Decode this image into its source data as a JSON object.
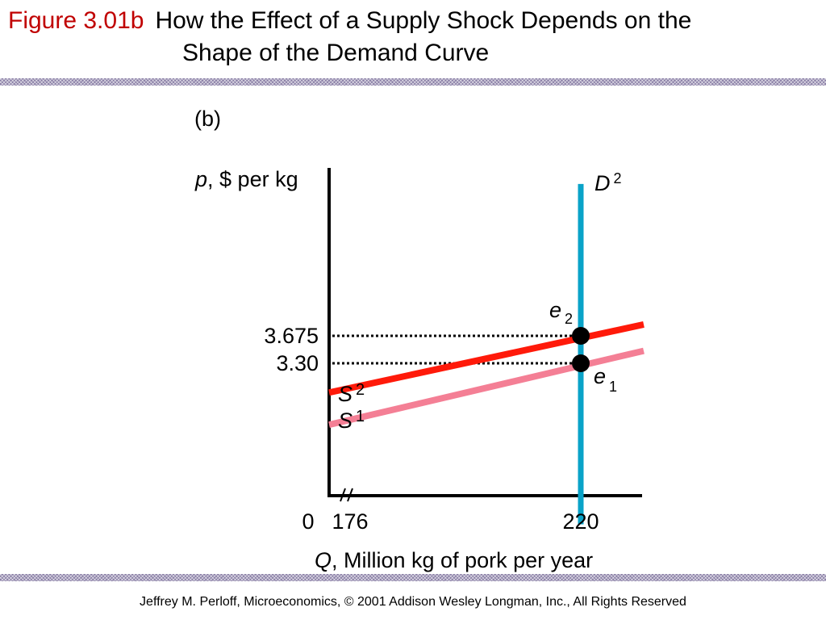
{
  "slide": {
    "figure_label": "Figure 3.01b",
    "title_line1": "How the Effect of a Supply Shock Depends on the",
    "title_line2": "Shape of the Demand Curve",
    "footer": "Jeffrey M. Perloff, Microeconomics,  © 2001 Addison Wesley Longman, Inc.,  All Rights Reserved"
  },
  "colors": {
    "figure_label": "#c00000",
    "hatch": "#8a7fa6",
    "demand": "#0aa3c8",
    "supply_s2": "#ff1a0a",
    "supply_s1": "#f47f95",
    "axis": "#000000"
  },
  "chart_data": {
    "type": "line",
    "panel_label": "(b)",
    "ylabel": {
      "var": "p",
      "rest": ", $ per kg"
    },
    "xlabel": {
      "var": "Q",
      "rest": ", Million kg of pork per year"
    },
    "x_ticks": [
      {
        "value": 0,
        "label": "0"
      },
      {
        "value": 176,
        "label": "176"
      },
      {
        "value": 220,
        "label": "220"
      }
    ],
    "y_ticks": [
      {
        "value": 3.675,
        "label": "3.675"
      },
      {
        "value": 3.3,
        "label": "3.30"
      }
    ],
    "x_axis_break": true,
    "series": [
      {
        "name": "D",
        "sub": "2",
        "points": [
          [
            220,
            1.1
          ],
          [
            220,
            5.75
          ]
        ]
      },
      {
        "name": "S",
        "sub": "2",
        "points": [
          [
            172,
            2.9
          ],
          [
            232,
            3.83
          ]
        ]
      },
      {
        "name": "S",
        "sub": "1",
        "points": [
          [
            172,
            2.46
          ],
          [
            232,
            3.47
          ]
        ]
      }
    ],
    "equilibria": [
      {
        "name": "e",
        "sub": "2",
        "x": 220,
        "y": 3.675
      },
      {
        "name": "e",
        "sub": "1",
        "x": 220,
        "y": 3.3
      }
    ]
  }
}
